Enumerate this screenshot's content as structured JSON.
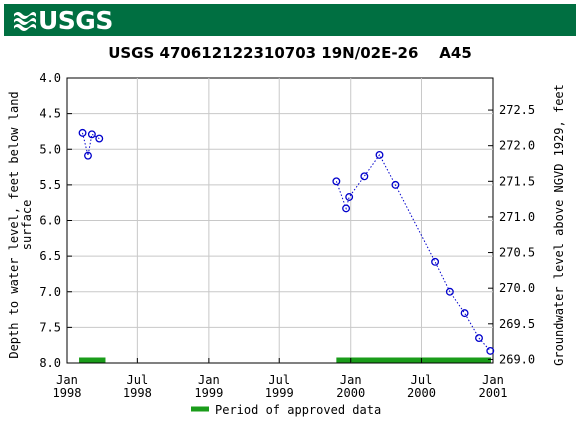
{
  "header": {
    "logo_text": "USGS",
    "background_color": "#006f41"
  },
  "chart_data": {
    "type": "scatter",
    "title": "USGS 470612122310703 19N/02E-26    A45",
    "ylabel_left": [
      "Depth to water level, feet below land",
      "surface"
    ],
    "ylabel_right": "Groundwater level above NGVD 1929, feet",
    "x_ticks": [
      {
        "line1": "Jan",
        "line2": "1998",
        "date": "1998-01-01"
      },
      {
        "line1": "Jul",
        "line2": "1998",
        "date": "1998-07-01"
      },
      {
        "line1": "Jan",
        "line2": "1999",
        "date": "1999-01-01"
      },
      {
        "line1": "Jul",
        "line2": "1999",
        "date": "1999-07-01"
      },
      {
        "line1": "Jan",
        "line2": "2000",
        "date": "2000-01-01"
      },
      {
        "line1": "Jul",
        "line2": "2000",
        "date": "2000-07-01"
      },
      {
        "line1": "Jan",
        "line2": "2001",
        "date": "2001-01-01"
      }
    ],
    "xlim": [
      "1998-01-01",
      "2001-01-01"
    ],
    "ylim_left": [
      4.0,
      8.0
    ],
    "left_ticks": [
      "4.0",
      "4.5",
      "5.0",
      "5.5",
      "6.0",
      "6.5",
      "7.0",
      "7.5",
      "8.0"
    ],
    "right_ticks": [
      "272.5",
      "272.0",
      "271.5",
      "271.0",
      "270.5",
      "270.0",
      "269.5",
      "269.0"
    ],
    "right_offset": 276.95,
    "grid": true,
    "series_color": "#0000cc",
    "segments": [
      [
        {
          "date": "1998-02-10",
          "value": 4.77
        },
        {
          "date": "1998-02-24",
          "value": 5.09
        },
        {
          "date": "1998-03-06",
          "value": 4.79
        },
        {
          "date": "1998-03-25",
          "value": 4.85
        }
      ],
      [
        {
          "date": "1999-11-25",
          "value": 5.45
        },
        {
          "date": "1999-12-20",
          "value": 5.83
        },
        {
          "date": "1999-12-28",
          "value": 5.67
        },
        {
          "date": "2000-02-05",
          "value": 5.38
        },
        {
          "date": "2000-03-15",
          "value": 5.08
        },
        {
          "date": "2000-04-25",
          "value": 5.5
        },
        {
          "date": "2000-08-05",
          "value": 6.58
        },
        {
          "date": "2000-09-12",
          "value": 7.0
        },
        {
          "date": "2000-10-20",
          "value": 7.3
        },
        {
          "date": "2000-11-26",
          "value": 7.65
        },
        {
          "date": "2000-12-25",
          "value": 7.83
        }
      ]
    ],
    "approved_periods": [
      {
        "start": "1998-02-01",
        "end": "1998-04-10"
      },
      {
        "start": "1999-11-25",
        "end": "2000-12-27"
      }
    ],
    "approved_color": "#1a9c1a",
    "legend": {
      "label": "Period of approved data",
      "position": "bottom-center"
    }
  }
}
